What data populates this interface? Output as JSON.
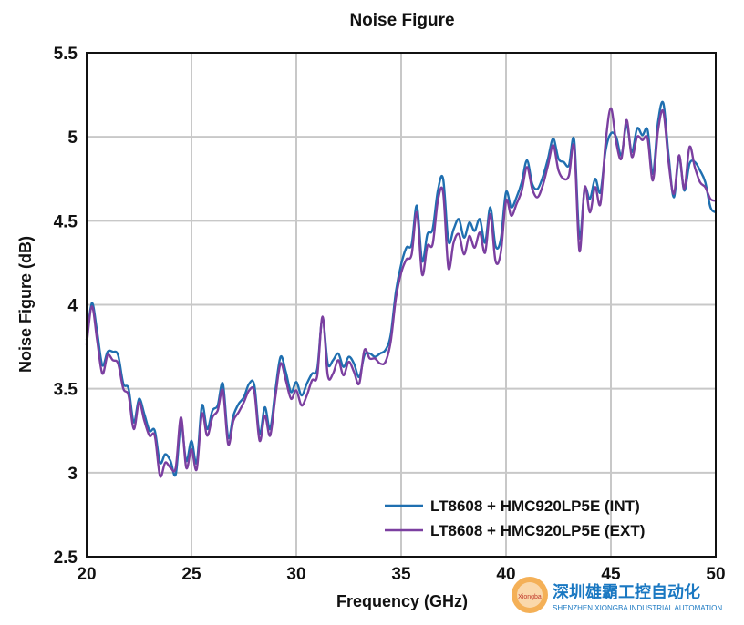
{
  "chart_data": {
    "type": "line",
    "title": "Noise Figure",
    "xlabel": "Frequency (GHz)",
    "ylabel": "Noise Figure (dB)",
    "xlim": [
      20,
      50
    ],
    "ylim": [
      2.5,
      5.5
    ],
    "xticks": [
      20,
      25,
      30,
      35,
      40,
      45,
      50
    ],
    "yticks": [
      2.5,
      3,
      3.5,
      4,
      4.5,
      5,
      5.5
    ],
    "xtick_labels": [
      "20",
      "25",
      "30",
      "35",
      "40",
      "45",
      "50"
    ],
    "ytick_labels": [
      "2.5",
      "3",
      "3.5",
      "4",
      "4.5",
      "5",
      "5.5"
    ],
    "grid": true,
    "legend_position": "bottom-right",
    "series": [
      {
        "name": "LT8608 + HMC920LP5E (INT)",
        "color": "#1f6fb0",
        "x": [
          20.0,
          20.25,
          20.5,
          20.75,
          21.0,
          21.25,
          21.5,
          21.75,
          22.0,
          22.25,
          22.5,
          22.75,
          23.0,
          23.25,
          23.5,
          23.75,
          24.0,
          24.25,
          24.5,
          24.75,
          25.0,
          25.25,
          25.5,
          25.75,
          26.0,
          26.25,
          26.5,
          26.75,
          27.0,
          27.25,
          27.5,
          27.75,
          28.0,
          28.25,
          28.5,
          28.75,
          29.0,
          29.25,
          29.5,
          29.75,
          30.0,
          30.25,
          30.5,
          30.75,
          31.0,
          31.25,
          31.5,
          31.75,
          32.0,
          32.25,
          32.5,
          32.75,
          33.0,
          33.25,
          33.5,
          33.75,
          34.0,
          34.25,
          34.5,
          34.75,
          35.0,
          35.25,
          35.5,
          35.75,
          36.0,
          36.25,
          36.5,
          36.75,
          37.0,
          37.25,
          37.5,
          37.75,
          38.0,
          38.25,
          38.5,
          38.75,
          39.0,
          39.25,
          39.5,
          39.75,
          40.0,
          40.25,
          40.5,
          40.75,
          41.0,
          41.25,
          41.5,
          41.75,
          42.0,
          42.25,
          42.5,
          42.75,
          43.0,
          43.25,
          43.5,
          43.75,
          44.0,
          44.25,
          44.5,
          44.75,
          45.0,
          45.25,
          45.5,
          45.75,
          46.0,
          46.25,
          46.5,
          46.75,
          47.0,
          47.25,
          47.5,
          47.75,
          48.0,
          48.25,
          48.5,
          48.75,
          49.0,
          49.25,
          49.5,
          49.75,
          50.0
        ],
        "y": [
          3.79,
          4.01,
          3.84,
          3.64,
          3.72,
          3.72,
          3.7,
          3.53,
          3.5,
          3.3,
          3.44,
          3.35,
          3.25,
          3.25,
          3.06,
          3.11,
          3.07,
          2.99,
          3.29,
          3.07,
          3.19,
          3.06,
          3.4,
          3.26,
          3.37,
          3.4,
          3.53,
          3.21,
          3.34,
          3.41,
          3.45,
          3.53,
          3.52,
          3.23,
          3.39,
          3.26,
          3.49,
          3.69,
          3.6,
          3.48,
          3.54,
          3.46,
          3.53,
          3.59,
          3.62,
          3.92,
          3.65,
          3.67,
          3.71,
          3.63,
          3.69,
          3.65,
          3.57,
          3.7,
          3.71,
          3.69,
          3.71,
          3.73,
          3.82,
          4.08,
          4.24,
          4.34,
          4.36,
          4.59,
          4.26,
          4.42,
          4.45,
          4.68,
          4.75,
          4.38,
          4.45,
          4.51,
          4.4,
          4.49,
          4.44,
          4.51,
          4.37,
          4.58,
          4.35,
          4.39,
          4.67,
          4.58,
          4.64,
          4.73,
          4.86,
          4.72,
          4.69,
          4.76,
          4.87,
          4.99,
          4.87,
          4.85,
          4.83,
          4.98,
          4.4,
          4.69,
          4.63,
          4.75,
          4.67,
          4.92,
          5.02,
          5.0,
          4.89,
          5.07,
          4.91,
          5.05,
          5.01,
          5.04,
          4.78,
          5.09,
          5.2,
          4.89,
          4.64,
          4.88,
          4.68,
          4.84,
          4.85,
          4.8,
          4.73,
          4.58,
          4.55
        ]
      },
      {
        "name": "LT8608 + HMC920LP5E (EXT)",
        "color": "#7b3fa0",
        "x": [
          20.0,
          20.25,
          20.5,
          20.75,
          21.0,
          21.25,
          21.5,
          21.75,
          22.0,
          22.25,
          22.5,
          22.75,
          23.0,
          23.25,
          23.5,
          23.75,
          24.0,
          24.25,
          24.5,
          24.75,
          25.0,
          25.25,
          25.5,
          25.75,
          26.0,
          26.25,
          26.5,
          26.75,
          27.0,
          27.25,
          27.5,
          27.75,
          28.0,
          28.25,
          28.5,
          28.75,
          29.0,
          29.25,
          29.5,
          29.75,
          30.0,
          30.25,
          30.5,
          30.75,
          31.0,
          31.25,
          31.5,
          31.75,
          32.0,
          32.25,
          32.5,
          32.75,
          33.0,
          33.25,
          33.5,
          33.75,
          34.0,
          34.25,
          34.5,
          34.75,
          35.0,
          35.25,
          35.5,
          35.75,
          36.0,
          36.25,
          36.5,
          36.75,
          37.0,
          37.25,
          37.5,
          37.75,
          38.0,
          38.25,
          38.5,
          38.75,
          39.0,
          39.25,
          39.5,
          39.75,
          40.0,
          40.25,
          40.5,
          40.75,
          41.0,
          41.25,
          41.5,
          41.75,
          42.0,
          42.25,
          42.5,
          42.75,
          43.0,
          43.25,
          43.5,
          43.75,
          44.0,
          44.25,
          44.5,
          44.75,
          45.0,
          45.25,
          45.5,
          45.75,
          46.0,
          46.25,
          46.5,
          46.75,
          47.0,
          47.25,
          47.5,
          47.75,
          48.0,
          48.25,
          48.5,
          48.75,
          49.0,
          49.25,
          49.5,
          49.75,
          50.0
        ],
        "y": [
          3.76,
          3.99,
          3.79,
          3.59,
          3.7,
          3.67,
          3.65,
          3.5,
          3.46,
          3.26,
          3.42,
          3.31,
          3.22,
          3.22,
          2.98,
          3.06,
          3.03,
          3.03,
          3.33,
          3.03,
          3.14,
          3.02,
          3.35,
          3.22,
          3.33,
          3.37,
          3.49,
          3.17,
          3.31,
          3.36,
          3.42,
          3.49,
          3.48,
          3.19,
          3.34,
          3.22,
          3.45,
          3.65,
          3.55,
          3.44,
          3.49,
          3.4,
          3.46,
          3.55,
          3.58,
          3.93,
          3.58,
          3.59,
          3.67,
          3.58,
          3.66,
          3.6,
          3.53,
          3.73,
          3.68,
          3.68,
          3.65,
          3.66,
          3.78,
          4.04,
          4.19,
          4.27,
          4.3,
          4.55,
          4.18,
          4.35,
          4.36,
          4.62,
          4.67,
          4.22,
          4.37,
          4.42,
          4.3,
          4.41,
          4.34,
          4.43,
          4.31,
          4.54,
          4.26,
          4.31,
          4.62,
          4.53,
          4.6,
          4.68,
          4.82,
          4.69,
          4.64,
          4.71,
          4.83,
          4.95,
          4.8,
          4.75,
          4.77,
          4.94,
          4.32,
          4.7,
          4.55,
          4.7,
          4.6,
          4.97,
          5.17,
          4.97,
          4.87,
          5.1,
          4.88,
          5.0,
          4.98,
          4.99,
          4.74,
          5.04,
          5.15,
          4.85,
          4.66,
          4.89,
          4.69,
          4.94,
          4.82,
          4.73,
          4.7,
          4.63,
          4.62
        ]
      }
    ]
  },
  "watermark": {
    "chinese": "深圳雄霸工控自动化",
    "english": "SHENZHEN XIONGBA INDUSTRIAL AUTOMATION",
    "badge": "Xiongba"
  }
}
